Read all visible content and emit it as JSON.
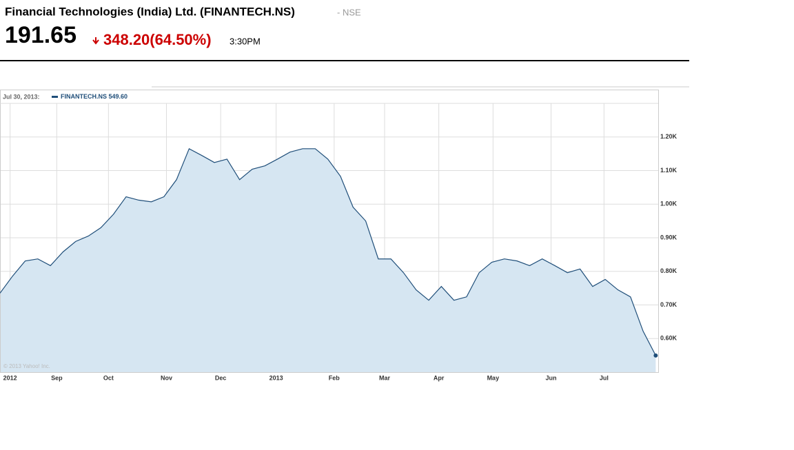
{
  "header": {
    "title": "Financial Technologies (India) Ltd. (FINANTECH.NS)",
    "exchange": "- NSE",
    "price": "191.65",
    "change": "348.20(64.50%)",
    "time": "3:30PM"
  },
  "chart_data": {
    "type": "area",
    "legend_date": "Jul 30, 2013:",
    "legend_value": "549.60",
    "copyright": "© 2013 Yahoo! Inc.",
    "series": [
      {
        "name": "FINANTECH.NS",
        "color": "#1f4e79",
        "fill": "#d6e6f2",
        "values": [
          735,
          786,
          831,
          837,
          817,
          858,
          889,
          905,
          930,
          970,
          1022,
          1012,
          1007,
          1022,
          1073,
          1165,
          1145,
          1124,
          1134,
          1073,
          1104,
          1114,
          1134,
          1155,
          1165,
          1165,
          1134,
          1083,
          991,
          950,
          837,
          837,
          796,
          745,
          714,
          755,
          714,
          724,
          796,
          827,
          837,
          831,
          817,
          837,
          817,
          796,
          807,
          755,
          776,
          745,
          724,
          622,
          549.6
        ]
      }
    ],
    "xlim": [
      0,
      52.2
    ],
    "xticks": [
      {
        "value": 0.8,
        "label": "2012"
      },
      {
        "value": 4.5,
        "label": "Sep"
      },
      {
        "value": 8.6,
        "label": "Oct"
      },
      {
        "value": 13.2,
        "label": "Nov"
      },
      {
        "value": 17.5,
        "label": "Dec"
      },
      {
        "value": 21.9,
        "label": "2013"
      },
      {
        "value": 26.5,
        "label": "Feb"
      },
      {
        "value": 30.5,
        "label": "Mar"
      },
      {
        "value": 34.8,
        "label": "Apr"
      },
      {
        "value": 39.1,
        "label": "May"
      },
      {
        "value": 43.7,
        "label": "Jun"
      },
      {
        "value": 47.9,
        "label": "Jul"
      }
    ],
    "ylim": [
      500,
      1300
    ],
    "yticks": [
      {
        "value": 600,
        "label": "0.60K"
      },
      {
        "value": 700,
        "label": "0.70K"
      },
      {
        "value": 800,
        "label": "0.80K"
      },
      {
        "value": 900,
        "label": "0.90K"
      },
      {
        "value": 1000,
        "label": "1.00K"
      },
      {
        "value": 1100,
        "label": "1.10K"
      },
      {
        "value": 1200,
        "label": "1.20K"
      }
    ],
    "grid": true
  }
}
